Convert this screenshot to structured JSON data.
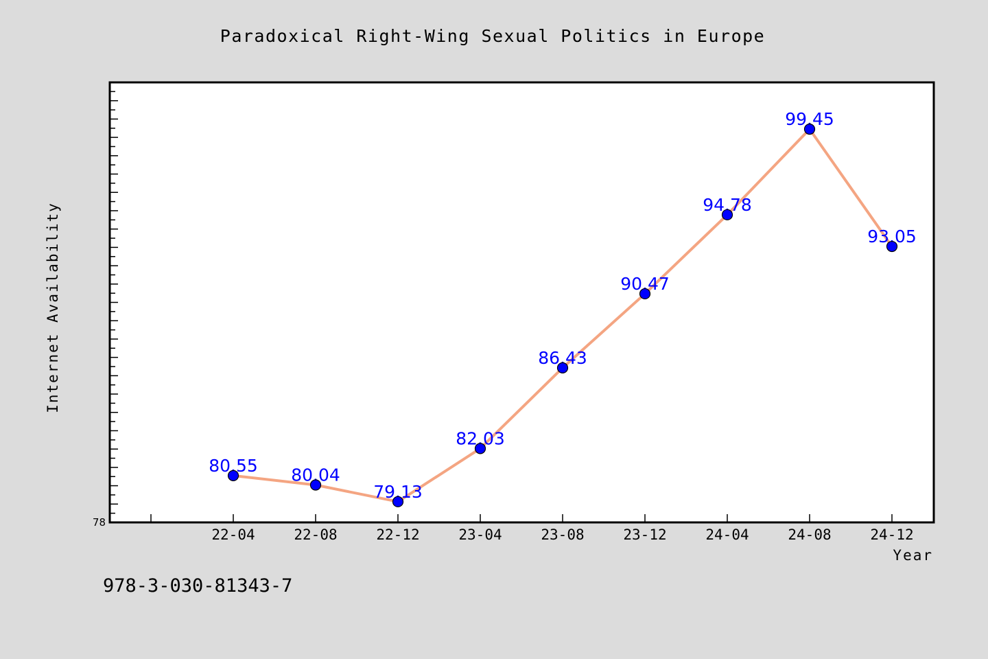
{
  "chart_data": {
    "type": "line",
    "title": "Paradoxical Right-Wing Sexual Politics in Europe",
    "xlabel": "Year",
    "ylabel": "Internet Availability",
    "categories": [
      "22-04",
      "22-08",
      "22-12",
      "23-04",
      "23-08",
      "23-12",
      "24-04",
      "24-08",
      "24-12"
    ],
    "series": [
      {
        "values": [
          80.55,
          80.04,
          79.13,
          82.03,
          86.43,
          90.47,
          94.78,
          99.45,
          93.05
        ],
        "data_labels": [
          "80.55",
          "80.04",
          "79.13",
          "82.03",
          "86.43",
          "90.47",
          "94.78",
          "99.45",
          "93.05"
        ]
      }
    ],
    "yticks": [
      "78"
    ],
    "ylim": [
      78,
      102
    ],
    "grid": false,
    "legend": "none",
    "colors": {
      "line": "#f4a582",
      "marker": "#0000ff",
      "label": "#0000ff",
      "plot_bg": "#ffffff",
      "page_bg": "#dcdcdc"
    }
  },
  "footer": {
    "isbn": "978-3-030-81343-7"
  }
}
